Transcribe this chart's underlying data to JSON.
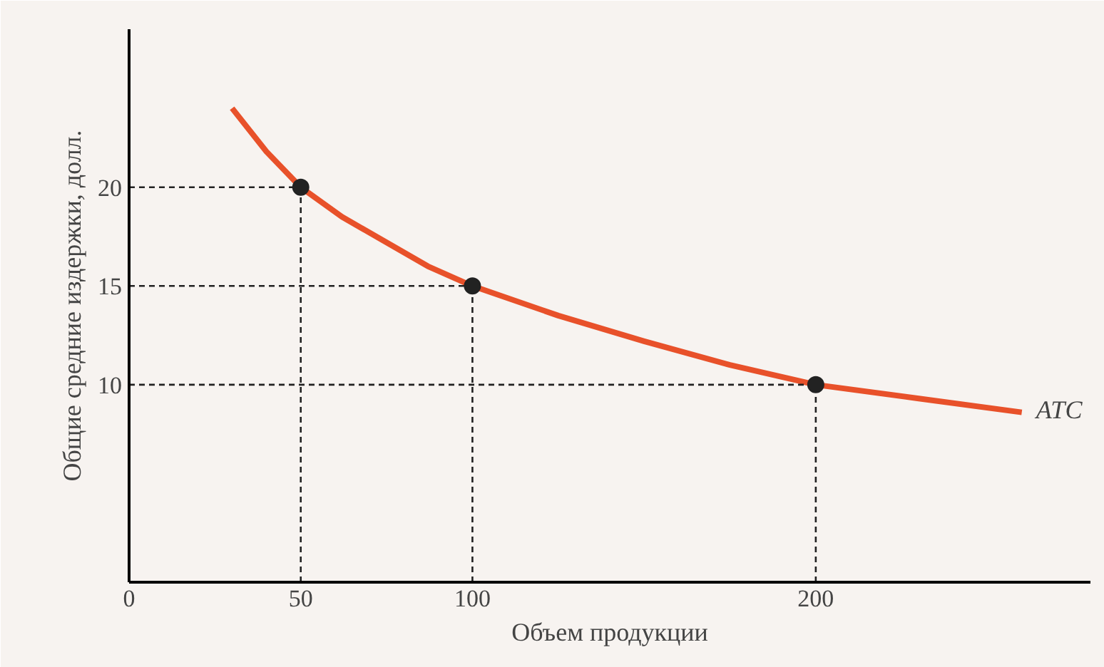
{
  "chart_data": {
    "type": "line",
    "xlabel": "Объем продукции",
    "ylabel": "Общие средние издержки, долл.",
    "xlim": [
      0,
      280
    ],
    "ylim": [
      0,
      28
    ],
    "xticks": [
      0,
      50,
      100,
      200
    ],
    "yticks": [
      10,
      15,
      20
    ],
    "series": [
      {
        "name": "ATC",
        "color": "#e8512a",
        "x": [
          30,
          40,
          50,
          62,
          75,
          87,
          100,
          125,
          150,
          175,
          200,
          230,
          260
        ],
        "values": [
          24,
          21.8,
          20,
          18.5,
          17.2,
          16,
          15,
          13.5,
          12.2,
          11,
          10,
          9.3,
          8.6
        ]
      },
      {
        "color": "#222222",
        "line_style": "dashed",
        "x": [
          0,
          50
        ],
        "values": [
          20,
          20
        ]
      },
      {
        "color": "#222222",
        "line_style": "dashed",
        "x": [
          50,
          50
        ],
        "values": [
          0,
          20
        ]
      },
      {
        "color": "#222222",
        "line_style": "dashed",
        "x": [
          0,
          100
        ],
        "values": [
          15,
          15
        ]
      },
      {
        "color": "#222222",
        "line_style": "dashed",
        "x": [
          100,
          100
        ],
        "values": [
          0,
          15
        ]
      },
      {
        "color": "#222222",
        "line_style": "dashed",
        "x": [
          0,
          200
        ],
        "values": [
          10,
          10
        ]
      },
      {
        "color": "#222222",
        "line_style": "dashed",
        "x": [
          200,
          200
        ],
        "values": [
          0,
          10
        ]
      },
      {
        "type": "scatter",
        "color": "#222222",
        "marker": "circle",
        "x": [
          50,
          100,
          200
        ],
        "values": [
          20,
          15,
          10
        ]
      }
    ]
  }
}
